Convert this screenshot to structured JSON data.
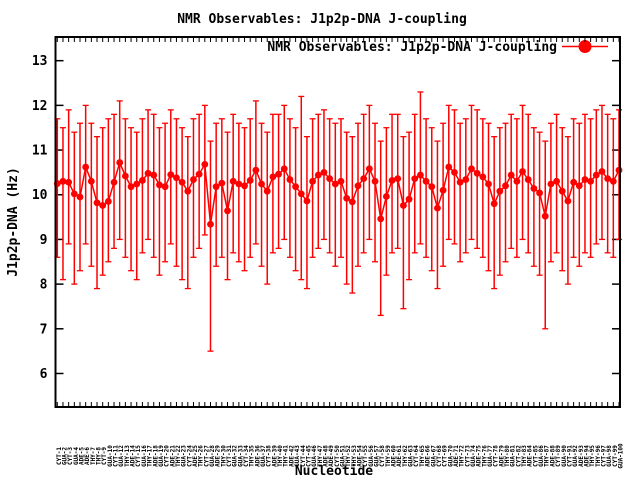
{
  "title": "NMR Observables: J1p2p-DNA J-coupling",
  "legend": {
    "label": "NMR Observables: J1p2p-DNA J-coupling",
    "position": "top-right-inside",
    "marker": "filled-circle"
  },
  "colors": {
    "series": "#ff0000",
    "axis": "#000000",
    "background": "#ffffff"
  },
  "chart_data": {
    "type": "line",
    "style": "linespoints-with-errorbars",
    "title": "NMR Observables: J1p2p-DNA J-coupling",
    "xlabel": "Nucleotide",
    "ylabel": "J1p2p-DNA (Hz)",
    "ylim": [
      5.25,
      13.53
    ],
    "yticks": [
      6,
      7,
      8,
      9,
      10,
      11,
      12,
      13
    ],
    "grid": false,
    "legend_position": "top-right-inside",
    "categories": [
      "CYT-1",
      "GUA-2",
      "CYT-3",
      "GUA-4",
      "ADE-5",
      "ADE-6",
      "THY-7",
      "THY-8",
      "CYT-9",
      "GUA-10",
      "CYT-11",
      "GUA-12",
      "THY-13",
      "ADE-14",
      "CYT-15",
      "GUA-16",
      "THY-17",
      "ADE-18",
      "GUA-19",
      "CYT-20",
      "ADE-21",
      "THY-22",
      "GUA-23",
      "CYT-24",
      "ADE-25",
      "THY-26",
      "CYT-27",
      "GUA-28",
      "ADE-29",
      "THY-30",
      "CYT-31",
      "GUA-32",
      "GUA-33",
      "CYT-34",
      "THY-35",
      "ADE-36",
      "GUA-37",
      "CYT-38",
      "ADE-39",
      "THY-40",
      "THY-41",
      "ADE-42",
      "GUA-43",
      "CYT-44",
      "CYT-45",
      "GUA-46",
      "THY-47",
      "ADE-48",
      "ADE-49",
      "CYT-50",
      "GUA-51",
      "THY-52",
      "THY-53",
      "ADE-54",
      "CYT-55",
      "GUA-56",
      "GUA-57",
      "CYT-58",
      "THY-59",
      "ADE-60",
      "ADE-61",
      "THY-62",
      "GUA-63",
      "CYT-64",
      "THY-65",
      "ADE-66",
      "GUA-67",
      "CYT-68",
      "CYT-69",
      "GUA-70",
      "ADE-71",
      "THY-72",
      "CYT-73",
      "GUA-74",
      "ADE-75",
      "THY-76",
      "GUA-77",
      "CYT-78",
      "ADE-79",
      "THY-80",
      "GUA-81",
      "CYT-82",
      "THY-83",
      "ADE-84",
      "CYT-85",
      "GUA-86",
      "THY-87",
      "ADE-88",
      "CYT-89",
      "GUA-90",
      "CYT-91",
      "GUA-92",
      "ADE-93",
      "ADE-94",
      "THY-95",
      "THY-96",
      "CYT-97",
      "GUA-98",
      "CYT-99",
      "GUA-100"
    ],
    "values": [
      10.25,
      10.3,
      10.28,
      10.02,
      9.95,
      10.62,
      10.3,
      9.82,
      9.76,
      9.85,
      10.28,
      10.72,
      10.42,
      10.18,
      10.24,
      10.32,
      10.48,
      10.44,
      10.22,
      10.18,
      10.45,
      10.38,
      10.28,
      10.08,
      10.34,
      10.46,
      10.68,
      9.34,
      10.18,
      10.26,
      9.64,
      10.3,
      10.24,
      10.2,
      10.32,
      10.55,
      10.24,
      10.08,
      10.4,
      10.46,
      10.58,
      10.34,
      10.18,
      10.02,
      9.86,
      10.3,
      10.44,
      10.5,
      10.36,
      10.24,
      10.3,
      9.92,
      9.84,
      10.2,
      10.36,
      10.58,
      10.3,
      9.46,
      9.96,
      10.32,
      10.36,
      9.76,
      9.9,
      10.36,
      10.44,
      10.3,
      10.18,
      9.7,
      10.1,
      10.62,
      10.5,
      10.28,
      10.34,
      10.58,
      10.48,
      10.4,
      10.24,
      9.8,
      10.08,
      10.2,
      10.44,
      10.3,
      10.52,
      10.34,
      10.14,
      10.04,
      9.52,
      10.24,
      10.3,
      10.08,
      9.86,
      10.28,
      10.2,
      10.34,
      10.3,
      10.44,
      10.52,
      10.36,
      10.3,
      10.55
    ],
    "err_low": [
      8.6,
      8.1,
      8.9,
      8.0,
      8.3,
      8.9,
      8.4,
      7.9,
      8.2,
      8.5,
      8.8,
      9.0,
      8.6,
      8.3,
      8.1,
      8.7,
      9.0,
      8.6,
      8.2,
      8.5,
      8.9,
      8.4,
      8.1,
      7.9,
      8.6,
      8.8,
      9.1,
      6.5,
      8.4,
      8.6,
      8.1,
      8.7,
      8.5,
      8.3,
      8.6,
      8.9,
      8.4,
      8.0,
      8.7,
      8.8,
      9.0,
      8.6,
      8.3,
      8.1,
      7.9,
      8.6,
      8.8,
      9.0,
      8.7,
      8.4,
      8.6,
      8.0,
      7.8,
      8.4,
      8.7,
      9.0,
      8.5,
      7.3,
      8.2,
      8.7,
      8.8,
      7.45,
      8.1,
      8.7,
      8.9,
      8.6,
      8.3,
      7.9,
      8.4,
      9.0,
      8.9,
      8.5,
      8.7,
      9.0,
      8.8,
      8.6,
      8.3,
      7.9,
      8.2,
      8.5,
      8.8,
      8.6,
      9.0,
      8.7,
      8.4,
      8.2,
      7.0,
      8.5,
      8.7,
      8.3,
      8.0,
      8.6,
      8.4,
      8.7,
      8.6,
      8.9,
      9.0,
      8.7,
      8.6,
      9.0
    ],
    "err_high": [
      11.7,
      11.5,
      11.9,
      11.4,
      11.6,
      12.0,
      11.6,
      11.3,
      11.5,
      11.7,
      11.8,
      12.1,
      11.7,
      11.5,
      11.4,
      11.7,
      11.9,
      11.8,
      11.5,
      11.6,
      11.9,
      11.7,
      11.5,
      11.3,
      11.7,
      11.8,
      12.0,
      11.2,
      11.6,
      11.7,
      11.4,
      11.8,
      11.6,
      11.5,
      11.7,
      12.1,
      11.6,
      11.4,
      11.8,
      11.8,
      12.0,
      11.7,
      11.5,
      12.2,
      11.3,
      11.7,
      11.8,
      11.9,
      11.7,
      11.6,
      11.7,
      11.4,
      11.3,
      11.6,
      11.8,
      12.0,
      11.6,
      11.2,
      11.5,
      11.8,
      11.8,
      11.3,
      11.4,
      11.8,
      12.3,
      11.7,
      11.5,
      11.2,
      11.6,
      12.0,
      11.9,
      11.6,
      11.7,
      12.0,
      11.9,
      11.7,
      11.6,
      11.3,
      11.5,
      11.6,
      11.8,
      11.7,
      12.0,
      11.8,
      11.5,
      11.4,
      11.2,
      11.6,
      11.8,
      11.5,
      11.3,
      11.7,
      11.6,
      11.8,
      11.7,
      11.9,
      12.0,
      11.8,
      11.7,
      11.9
    ]
  }
}
